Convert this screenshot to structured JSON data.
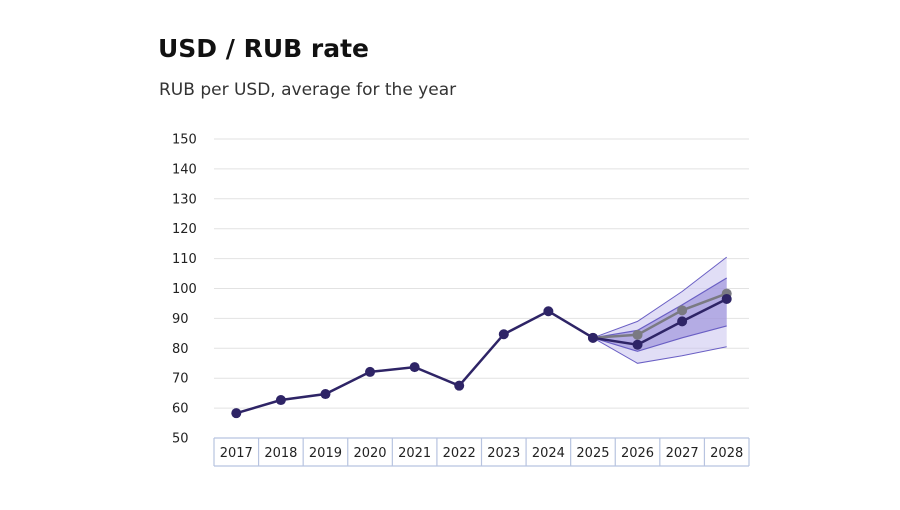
{
  "title": "USD / RUB rate",
  "subtitle": "RUB per USD, average for the year",
  "colors": {
    "main_line": "#2e2466",
    "alt_line": "#7a7a82",
    "band_outer": "#c9c2ef",
    "band_inner": "#8f84d6",
    "band_edge": "#6a5fc4",
    "grid": "#e2e2e2",
    "axis_box": "#b8c4e0"
  },
  "chart_data": {
    "type": "line",
    "categories": [
      "2017",
      "2018",
      "2019",
      "2020",
      "2021",
      "2022",
      "2023",
      "2024",
      "2025",
      "2026",
      "2027",
      "2028"
    ],
    "ylim": [
      50,
      150
    ],
    "yticks": [
      50,
      60,
      70,
      80,
      90,
      100,
      110,
      120,
      130,
      140,
      150
    ],
    "grid": true,
    "series": [
      {
        "values": [
          58.3,
          62.7,
          64.7,
          72.1,
          73.7,
          67.5,
          84.7,
          92.4,
          83.5,
          81.2,
          89.0,
          96.5
        ]
      },
      {
        "values": [
          null,
          null,
          null,
          null,
          null,
          null,
          null,
          null,
          83.5,
          84.5,
          92.7,
          98.3
        ]
      }
    ],
    "bands": [
      {
        "lower": [
          null,
          null,
          null,
          null,
          null,
          null,
          null,
          null,
          83.5,
          75.0,
          77.5,
          80.5
        ],
        "upper": [
          null,
          null,
          null,
          null,
          null,
          null,
          null,
          null,
          83.5,
          89.0,
          99.0,
          110.5
        ]
      },
      {
        "lower": [
          null,
          null,
          null,
          null,
          null,
          null,
          null,
          null,
          83.5,
          79.0,
          83.5,
          87.5
        ],
        "upper": [
          null,
          null,
          null,
          null,
          null,
          null,
          null,
          null,
          83.5,
          86.0,
          94.5,
          103.5
        ]
      }
    ]
  }
}
